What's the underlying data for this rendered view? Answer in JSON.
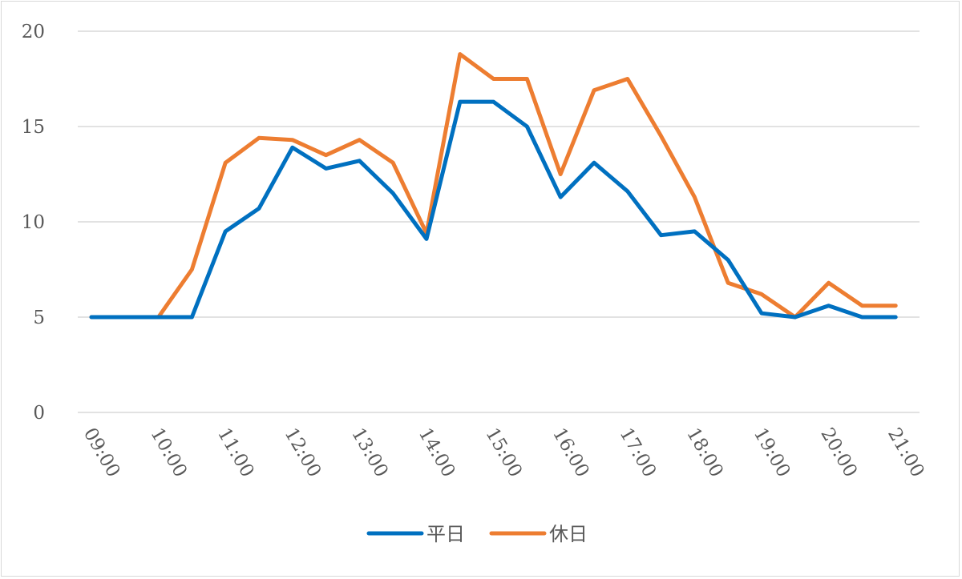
{
  "chart_data": {
    "type": "line",
    "title": "",
    "xlabel": "",
    "ylabel": "",
    "ylim": [
      0,
      20
    ],
    "yticks": [
      0,
      5,
      10,
      15,
      20
    ],
    "x_tick_labels": [
      "09:00",
      "10:00",
      "11:00",
      "12:00",
      "13:00",
      "14:00",
      "15:00",
      "16:00",
      "17:00",
      "18:00",
      "19:00",
      "20:00",
      "21:00"
    ],
    "x": [
      "09:00",
      "09:30",
      "10:00",
      "10:30",
      "11:00",
      "11:30",
      "12:00",
      "12:30",
      "13:00",
      "13:30",
      "14:00",
      "14:30",
      "15:00",
      "15:30",
      "16:00",
      "16:30",
      "17:00",
      "17:30",
      "18:00",
      "18:30",
      "19:00",
      "19:30",
      "20:00",
      "20:30",
      "21:00"
    ],
    "grid": true,
    "legend_position": "bottom",
    "series": [
      {
        "name": "平日",
        "color": "#0070C0",
        "values": [
          5.0,
          5.0,
          5.0,
          5.0,
          9.5,
          10.7,
          13.9,
          12.8,
          13.2,
          11.5,
          9.1,
          16.3,
          16.3,
          15.0,
          11.3,
          13.1,
          11.6,
          9.3,
          9.5,
          8.0,
          5.2,
          5.0,
          5.6,
          5.0,
          5.0
        ]
      },
      {
        "name": "休日",
        "color": "#ED7D31",
        "values": [
          5.0,
          5.0,
          5.0,
          7.5,
          13.1,
          14.4,
          14.3,
          13.5,
          14.3,
          13.1,
          9.4,
          18.8,
          17.5,
          17.5,
          12.5,
          16.9,
          17.5,
          14.5,
          11.3,
          6.8,
          6.2,
          5.0,
          6.8,
          5.6,
          5.6
        ]
      }
    ]
  }
}
